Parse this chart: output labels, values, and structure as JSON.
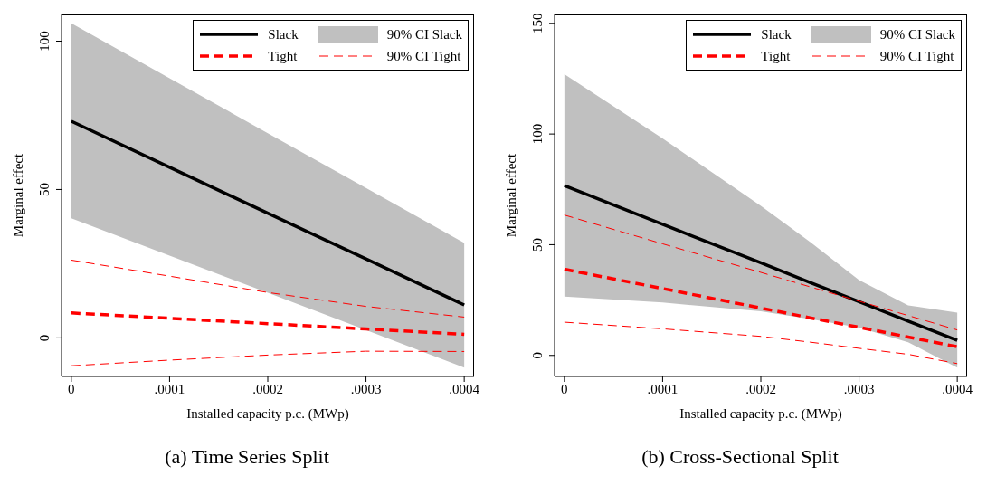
{
  "chart_data": [
    {
      "type": "line",
      "title": "(a) Time Series Split",
      "xlabel": "Installed capacity p.c. (MWp)",
      "ylabel": "Marginal effect",
      "x": [
        0,
        0.0001,
        0.0002,
        0.0003,
        0.0004
      ],
      "xlim": [
        -1e-05,
        0.00041
      ],
      "xticks": [
        0,
        {
          "value": 0.0001,
          "label": ".0001"
        },
        {
          "value": 0.0002,
          "label": ".0002"
        },
        {
          "value": 0.0003,
          "label": ".0003"
        },
        {
          "value": 0.0004,
          "label": ".0004"
        }
      ],
      "ylim": [
        -13,
        109
      ],
      "yticks": [
        0,
        50,
        100
      ],
      "grid": false,
      "legend": "top right",
      "annotations": [
        "90% CI Slack"
      ],
      "series": [
        {
          "name": "Slack",
          "color": "#000000",
          "line_style": "solid",
          "values": [
            73,
            57.5,
            42,
            26.6,
            11.1
          ],
          "lower": [
            40.3,
            27.7,
            15.2,
            2.6,
            -10
          ],
          "upper": [
            106,
            87.5,
            69,
            50.5,
            32
          ]
        },
        {
          "name": "Tight",
          "color": "#ff0000",
          "line_style": "dashed",
          "values": [
            8.4,
            6.6,
            4.8,
            3,
            1.2
          ]
        },
        {
          "name": "90% CI Tight",
          "color": "#ff0000",
          "line_style": "dashed",
          "values": [
            26.2,
            20.8,
            15.3,
            10.6,
            7
          ]
        },
        {
          "color": "#ff0000",
          "line_style": "dashed",
          "values": [
            -9.4,
            -7.5,
            -5.8,
            -4.5,
            -4.6
          ]
        }
      ]
    },
    {
      "type": "line",
      "title": "(b) Cross-Sectional Split",
      "xlabel": "Installed capacity p.c. (MWp)",
      "ylabel": "Marginal effect",
      "x": [
        0,
        0.0001,
        0.0002,
        0.00025,
        0.0003,
        0.00035,
        0.0004
      ],
      "xlim": [
        -1e-05,
        0.00041
      ],
      "xticks": [
        0,
        {
          "value": 0.0001,
          "label": ".0001"
        },
        {
          "value": 0.0002,
          "label": ".0002"
        },
        {
          "value": 0.0003,
          "label": ".0003"
        },
        {
          "value": 0.0004,
          "label": ".0004"
        }
      ],
      "ylim": [
        -9.5,
        154
      ],
      "yticks": [
        0,
        50,
        100,
        150
      ],
      "grid": false,
      "legend": "top right",
      "annotations": [
        "90% CI Slack"
      ],
      "series": [
        {
          "name": "Slack",
          "color": "#000000",
          "line_style": "solid",
          "values": [
            76.7,
            59.2,
            41.8,
            33,
            24.3,
            15.5,
            6.8
          ],
          "lower": [
            26.6,
            23.9,
            19.9,
            16.5,
            12.6,
            5.9,
            -5.5
          ],
          "upper": [
            127,
            98,
            67.6,
            51.3,
            34,
            22.6,
            19.3
          ]
        },
        {
          "name": "Tight",
          "color": "#ff0000",
          "line_style": "dashed",
          "values": [
            38.9,
            30.2,
            21.4,
            17,
            12.7,
            8.3,
            3.9
          ]
        },
        {
          "name": "90% CI Tight",
          "color": "#ff0000",
          "line_style": "dashed",
          "values": [
            63.4,
            50.4,
            37.5,
            31,
            24.5,
            18,
            11.5
          ]
        },
        {
          "color": "#ff0000",
          "line_style": "dashed",
          "values": [
            15,
            12,
            8.6,
            6,
            3.2,
            0.5,
            -3.7
          ]
        }
      ]
    }
  ]
}
